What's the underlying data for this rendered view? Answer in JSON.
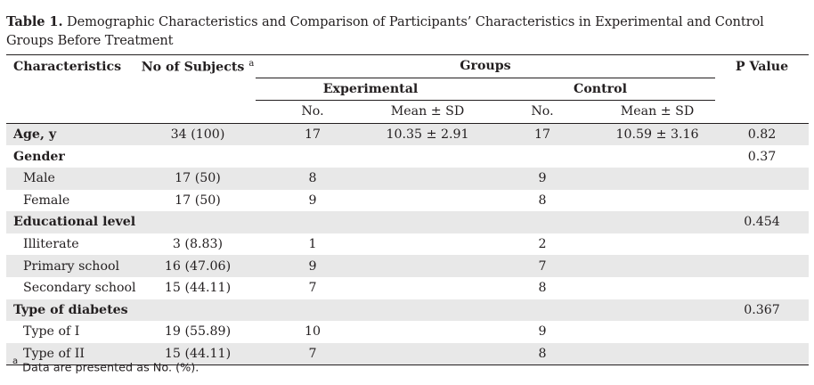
{
  "caption": {
    "label": "Table 1.",
    "text": "Demographic Characteristics and Comparison of Participants’ Characteristics in Experimental and Control Groups Before Treatment"
  },
  "header": {
    "characteristics": "Characteristics",
    "no_of_subjects": "No of Subjects",
    "no_of_subjects_sup": "a",
    "groups": "Groups",
    "p_value": "P Value",
    "experimental": "Experimental",
    "control": "Control",
    "exp_no": "No.",
    "exp_mean": "Mean ± SD",
    "ctl_no": "No.",
    "ctl_mean": "Mean ± SD"
  },
  "rows": [
    {
      "label": "Age, y",
      "subjects": "34 (100)",
      "exp_no": "17",
      "exp_mean": "10.35 ± 2.91",
      "ctl_no": "17",
      "ctl_mean": "10.59 ± 3.16",
      "p": "0.82"
    },
    {
      "label": "Gender",
      "subjects": "",
      "exp_no": "",
      "exp_mean": "",
      "ctl_no": "",
      "ctl_mean": "",
      "p": "0.37"
    },
    {
      "label": "Male",
      "subjects": "17 (50)",
      "exp_no": "8",
      "exp_mean": "",
      "ctl_no": "9",
      "ctl_mean": "",
      "p": ""
    },
    {
      "label": "Female",
      "subjects": "17 (50)",
      "exp_no": "9",
      "exp_mean": "",
      "ctl_no": "8",
      "ctl_mean": "",
      "p": ""
    },
    {
      "label": "Educational level",
      "subjects": "",
      "exp_no": "",
      "exp_mean": "",
      "ctl_no": "",
      "ctl_mean": "",
      "p": "0.454"
    },
    {
      "label": "Illiterate",
      "subjects": "3 (8.83)",
      "exp_no": "1",
      "exp_mean": "",
      "ctl_no": "2",
      "ctl_mean": "",
      "p": ""
    },
    {
      "label": "Primary school",
      "subjects": "16 (47.06)",
      "exp_no": "9",
      "exp_mean": "",
      "ctl_no": "7",
      "ctl_mean": "",
      "p": ""
    },
    {
      "label": "Secondary school",
      "subjects": "15 (44.11)",
      "exp_no": "7",
      "exp_mean": "",
      "ctl_no": "8",
      "ctl_mean": "",
      "p": ""
    },
    {
      "label": "Type of diabetes",
      "subjects": "",
      "exp_no": "",
      "exp_mean": "",
      "ctl_no": "",
      "ctl_mean": "",
      "p": "0.367"
    },
    {
      "label": "Type of I",
      "subjects": "19 (55.89)",
      "exp_no": "10",
      "exp_mean": "",
      "ctl_no": "9",
      "ctl_mean": "",
      "p": ""
    },
    {
      "label": "Type of II",
      "subjects": "15 (44.11)",
      "exp_no": "7",
      "exp_mean": "",
      "ctl_no": "8",
      "ctl_mean": "",
      "p": ""
    }
  ],
  "footnote": {
    "sup": "a",
    "text": "Data are presented as No. (%)."
  }
}
